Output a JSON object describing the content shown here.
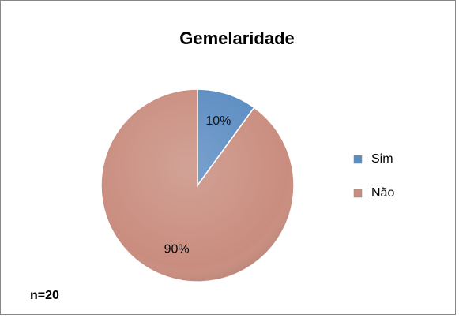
{
  "chart_data": {
    "type": "pie",
    "title": "Gemelaridade",
    "categories": [
      "Sim",
      "Não"
    ],
    "values": [
      10,
      90
    ],
    "value_labels": [
      "10%",
      "90%"
    ],
    "colors": [
      "#5b8cc2",
      "#c98d7f"
    ],
    "legend": "right",
    "annotation": "n=20"
  }
}
